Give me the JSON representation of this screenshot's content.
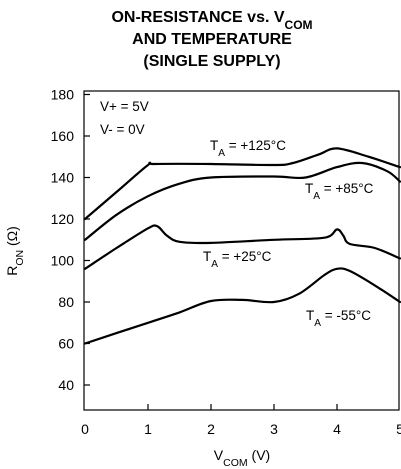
{
  "chart_data": {
    "type": "line",
    "title_lines": [
      {
        "main": "ON-RESISTANCE vs. V",
        "sub": "COM"
      },
      {
        "main": "AND TEMPERATURE",
        "sub": ""
      },
      {
        "main": "(SINGLE SUPPLY)",
        "sub": ""
      }
    ],
    "xlabel": {
      "main": "V",
      "sub": "COM",
      "tail": " (V)"
    },
    "ylabel": {
      "main": "R",
      "sub": "ON",
      "tail": " (Ω)"
    },
    "xlim": [
      0,
      5
    ],
    "ylim": [
      30,
      180
    ],
    "x_ticks": [
      0,
      1,
      2,
      3,
      4,
      5
    ],
    "y_ticks": [
      40,
      60,
      80,
      100,
      120,
      140,
      160,
      180
    ],
    "grid": false,
    "supply_notes": [
      "V+ = 5V",
      "V- = 0V"
    ],
    "series": [
      {
        "name": "T_A = +125°C",
        "label_main": "T",
        "label_sub": "A",
        "label_tail": " = +125°C",
        "x": [
          0,
          0.5,
          1.0,
          1.1,
          2.0,
          3.0,
          3.3,
          3.7,
          4.0,
          4.5,
          5.0
        ],
        "y": [
          120,
          133,
          146,
          146.5,
          146.5,
          146,
          147,
          151,
          154,
          150,
          145
        ]
      },
      {
        "name": "T_A = +85°C",
        "label_main": "T",
        "label_sub": "A",
        "label_tail": " = +85°C",
        "x": [
          0,
          0.5,
          1.0,
          1.5,
          2.0,
          3.0,
          3.5,
          4.0,
          4.4,
          4.8,
          5.0
        ],
        "y": [
          110,
          122,
          131,
          137,
          140,
          140.5,
          140,
          145,
          147,
          143,
          138
        ]
      },
      {
        "name": "T_A = +25°C",
        "label_main": "T",
        "label_sub": "A",
        "label_tail": " = +25°C",
        "x": [
          0,
          0.5,
          1.0,
          1.15,
          1.3,
          1.5,
          2.0,
          3.0,
          3.8,
          4.0,
          4.1,
          4.2,
          4.6,
          5.0
        ],
        "y": [
          96,
          106,
          115.5,
          116.5,
          112,
          109,
          108.5,
          110,
          111,
          115,
          112,
          108,
          106,
          101
        ]
      },
      {
        "name": "T_A = -55°C",
        "label_main": "T",
        "label_sub": "A",
        "label_tail": " = -55°C",
        "x": [
          0,
          0.5,
          1.0,
          1.5,
          2.0,
          2.5,
          3.0,
          3.4,
          3.8,
          4.0,
          4.2,
          4.6,
          5.0
        ],
        "y": [
          60,
          65,
          70,
          75,
          80.5,
          81,
          80,
          84,
          93,
          96,
          95,
          88,
          80
        ]
      }
    ]
  }
}
